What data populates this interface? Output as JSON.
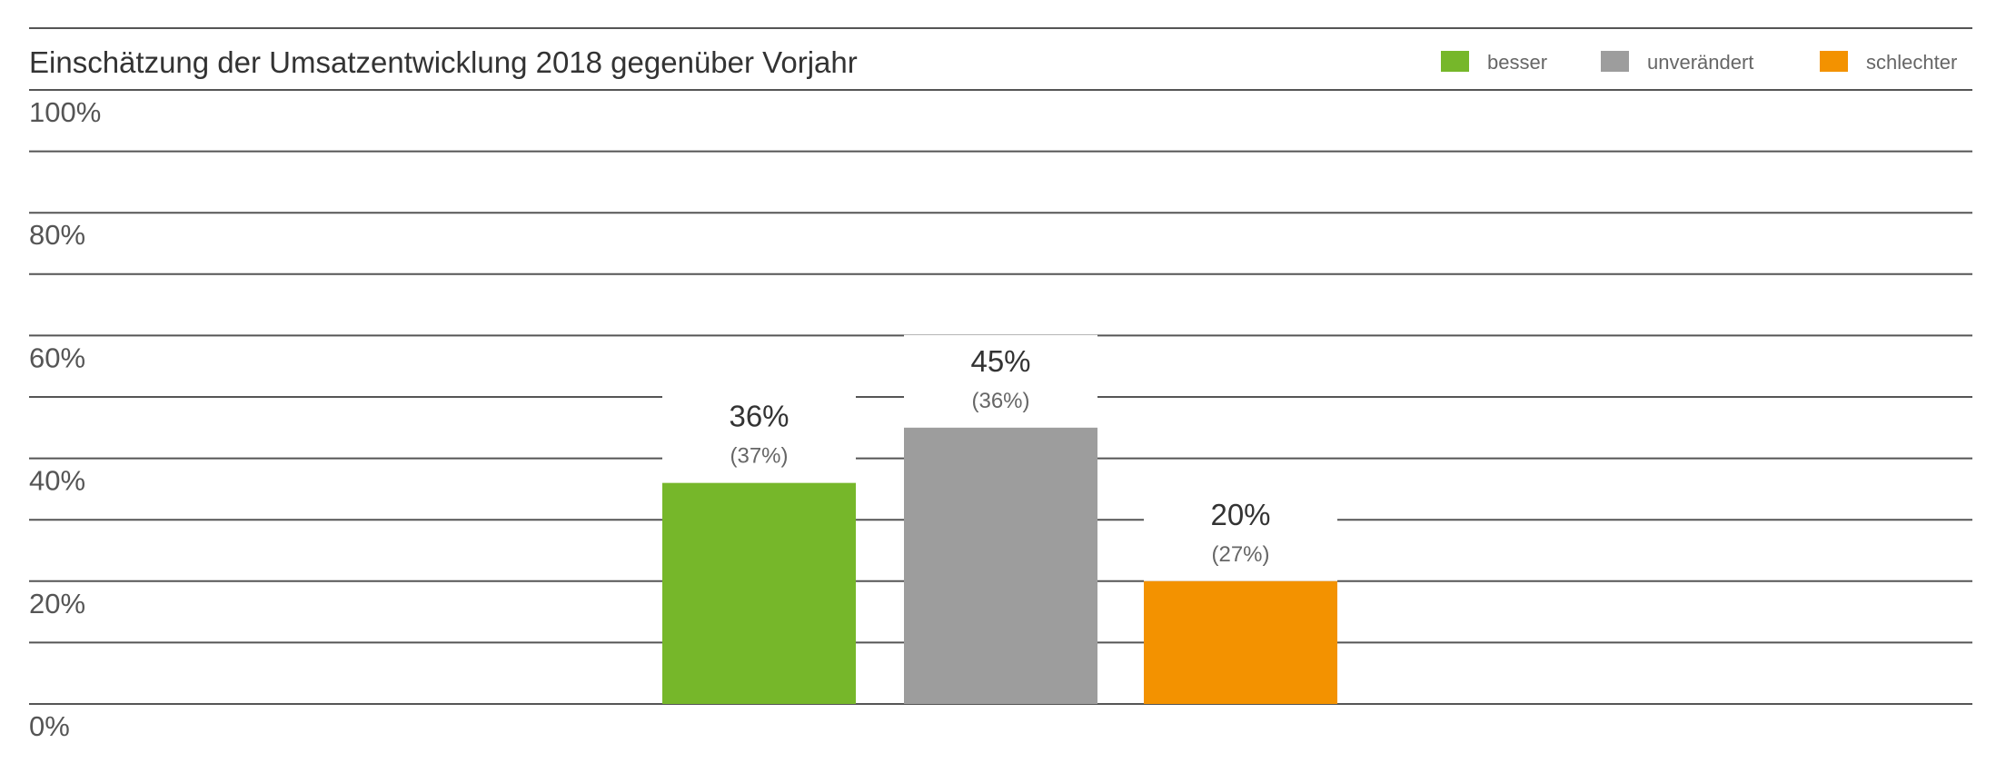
{
  "chart_data": {
    "type": "bar",
    "title": "Einschätzung der Umsatzentwicklung 2018 gegenüber Vorjahr",
    "xlabel": "",
    "ylabel": "",
    "ylim": [
      0,
      100
    ],
    "yticks": [
      0,
      20,
      40,
      60,
      80,
      100
    ],
    "ytick_labels": [
      "0%",
      "20%",
      "40%",
      "60%",
      "80%",
      "100%"
    ],
    "grid": true,
    "legend_position": "top-right",
    "categories": [
      "besser",
      "unverändert",
      "schlechter"
    ],
    "values": [
      36,
      45,
      20
    ],
    "value_labels": [
      "36%",
      "45%",
      "20%"
    ],
    "previous_year_values": [
      37,
      36,
      27
    ],
    "previous_year_labels": [
      "(37%)",
      "(36%)",
      "(27%)"
    ],
    "colors": [
      "#76b72a",
      "#9d9d9d",
      "#f39200"
    ],
    "legend": [
      {
        "label": "besser",
        "color": "#76b72a"
      },
      {
        "label": "unverändert",
        "color": "#9d9d9d"
      },
      {
        "label": "schlechter",
        "color": "#f39200"
      }
    ]
  }
}
